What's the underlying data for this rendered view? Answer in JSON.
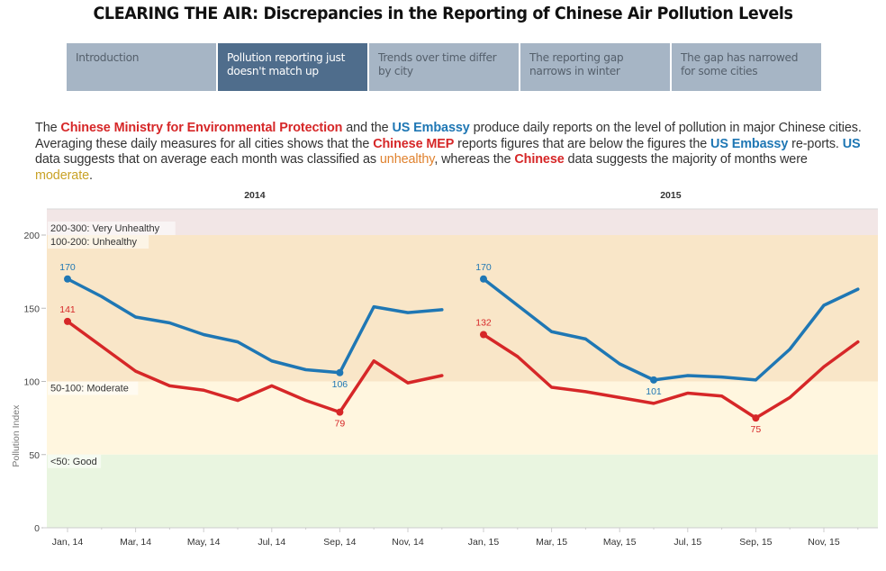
{
  "header": {
    "title": "CLEARING THE AIR: Discrepancies in the Reporting of Chinese Air Pollution Levels"
  },
  "tabs": [
    {
      "label": "Introduction",
      "active": false
    },
    {
      "label": "Pollution reporting just doesn't match up",
      "active": true
    },
    {
      "label": "Trends over time differ by city",
      "active": false
    },
    {
      "label": "The reporting gap narrows in winter",
      "active": false
    },
    {
      "label": "The gap has narrowed for some cities",
      "active": false
    }
  ],
  "intro": {
    "t1": "The ",
    "h1": "Chinese Ministry for Environmental Protection",
    "t2": " and the ",
    "h2": "US Embassy",
    "t3": " produce daily reports on the level of pollution in major Chinese cities. Averaging these daily measures for all cities shows that the ",
    "h3": "Chinese MEP",
    "t4": " reports figures that are below the figures the ",
    "h4": "US Embassy",
    "t5": " re-ports. ",
    "h5": "US",
    "t6": " data suggests that on average each month was classified as ",
    "h6": "unhealthy",
    "t7": ", whereas the ",
    "h7": "Chinese",
    "t8": " data suggests the majority of months were ",
    "h8": "moderate",
    "t9": "."
  },
  "colors": {
    "us": "#1f77b4",
    "china": "#d62728",
    "band_very_unhealthy": "#f2e6e6",
    "band_unhealthy": "#f9e6c8",
    "band_moderate": "#fff6df",
    "band_good": "#e9f5e0"
  },
  "chart_data": {
    "type": "line",
    "title": "",
    "ylabel": "Pollution Index",
    "ylim": [
      0,
      220
    ],
    "yticks": [
      0,
      50,
      100,
      150,
      200
    ],
    "grid": false,
    "bands": [
      {
        "from": 200,
        "to": 300,
        "label": "200-300: Very Unhealthy"
      },
      {
        "from": 100,
        "to": 200,
        "label": "100-200: Unhealthy"
      },
      {
        "from": 50,
        "to": 100,
        "label": "50-100: Moderate"
      },
      {
        "from": 0,
        "to": 50,
        "label": "<50: Good"
      }
    ],
    "panels": [
      {
        "year": "2014",
        "tick_labels": [
          "Jan, 14",
          "Mar, 14",
          "May, 14",
          "Jul, 14",
          "Sep, 14",
          "Nov, 14"
        ],
        "months": [
          "Jan",
          "Feb",
          "Mar",
          "Apr",
          "May",
          "Jun",
          "Jul",
          "Aug",
          "Sep",
          "Oct",
          "Nov",
          "Dec"
        ],
        "series": [
          {
            "name": "US Embassy",
            "values": [
              170,
              158,
              144,
              140,
              132,
              127,
              114,
              108,
              106,
              151,
              147,
              149
            ],
            "labels": [
              {
                "index": 0,
                "text": "170"
              },
              {
                "index": 8,
                "text": "106"
              }
            ]
          },
          {
            "name": "Chinese MEP",
            "values": [
              141,
              124,
              107,
              97,
              94,
              87,
              97,
              87,
              79,
              114,
              99,
              104
            ],
            "labels": [
              {
                "index": 0,
                "text": "141"
              },
              {
                "index": 8,
                "text": "79"
              }
            ]
          }
        ]
      },
      {
        "year": "2015",
        "tick_labels": [
          "Jan, 15",
          "Mar, 15",
          "May, 15",
          "Jul, 15",
          "Sep, 15",
          "Nov, 15"
        ],
        "months": [
          "Jan",
          "Feb",
          "Mar",
          "Apr",
          "May",
          "Jun",
          "Jul",
          "Aug",
          "Sep",
          "Oct",
          "Nov",
          "Dec"
        ],
        "series": [
          {
            "name": "US Embassy",
            "values": [
              170,
              152,
              134,
              129,
              112,
              101,
              104,
              103,
              101,
              122,
              152,
              163
            ],
            "labels": [
              {
                "index": 0,
                "text": "170"
              },
              {
                "index": 5,
                "text": "101"
              }
            ]
          },
          {
            "name": "Chinese MEP",
            "values": [
              132,
              117,
              96,
              93,
              89,
              85,
              92,
              90,
              75,
              89,
              110,
              127
            ],
            "labels": [
              {
                "index": 0,
                "text": "132"
              },
              {
                "index": 8,
                "text": "75"
              }
            ]
          }
        ]
      }
    ]
  }
}
